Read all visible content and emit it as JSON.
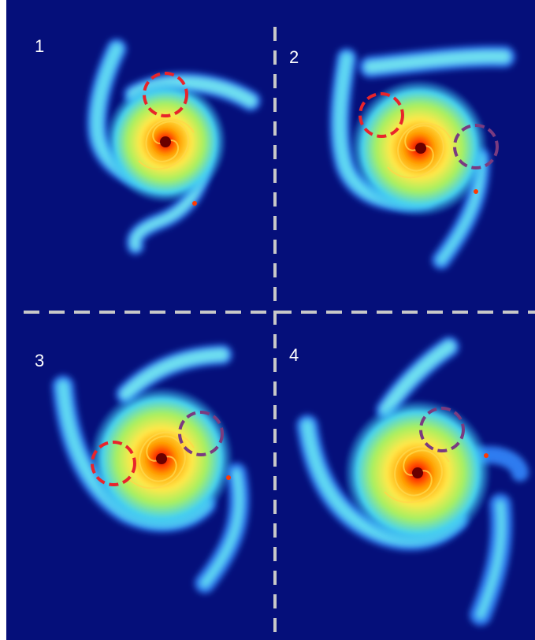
{
  "panels": {
    "p1": {
      "label": "1"
    },
    "p2": {
      "label": "2"
    },
    "p3": {
      "label": "3"
    },
    "p4": {
      "label": "4"
    }
  },
  "colors": {
    "background": "#050f7a",
    "divider": "#c8c8c8",
    "marker_red": "#e8242b",
    "marker_purple": "#7a3b80"
  }
}
